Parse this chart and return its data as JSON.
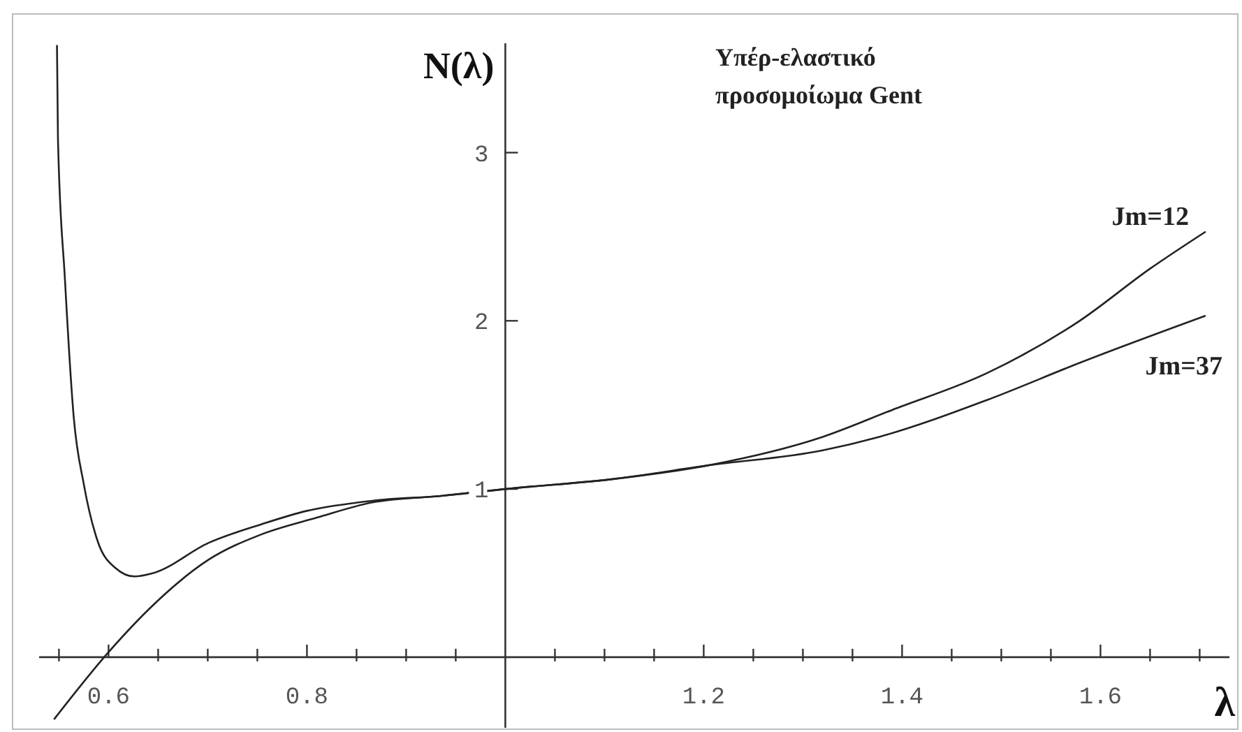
{
  "chart_data": {
    "type": "line",
    "title": "Υπέρ-ελαστικό\nπροσομοίωμα Gent",
    "xlabel": "λ",
    "ylabel": "N(λ)",
    "xlim": [
      0.53,
      1.73
    ],
    "ylim": [
      -0.42,
      3.65
    ],
    "xticks": [
      {
        "value": 0.55,
        "label": null
      },
      {
        "value": 0.6,
        "label": "0.6"
      },
      {
        "value": 0.65,
        "label": null
      },
      {
        "value": 0.7,
        "label": null
      },
      {
        "value": 0.75,
        "label": null
      },
      {
        "value": 0.8,
        "label": "0.8"
      },
      {
        "value": 0.85,
        "label": null
      },
      {
        "value": 0.9,
        "label": null
      },
      {
        "value": 0.95,
        "label": null
      },
      {
        "value": 1.05,
        "label": null
      },
      {
        "value": 1.1,
        "label": null
      },
      {
        "value": 1.15,
        "label": null
      },
      {
        "value": 1.2,
        "label": "1.2"
      },
      {
        "value": 1.25,
        "label": null
      },
      {
        "value": 1.3,
        "label": null
      },
      {
        "value": 1.35,
        "label": null
      },
      {
        "value": 1.4,
        "label": "1.4"
      },
      {
        "value": 1.45,
        "label": null
      },
      {
        "value": 1.5,
        "label": null
      },
      {
        "value": 1.55,
        "label": null
      },
      {
        "value": 1.6,
        "label": "1.6"
      },
      {
        "value": 1.65,
        "label": null
      },
      {
        "value": 1.7,
        "label": null
      }
    ],
    "yticks": [
      1,
      2,
      3
    ],
    "grid": false,
    "marker": "none",
    "line_style": "solid",
    "series": [
      {
        "name": "Jm=12",
        "color": "#222222",
        "x": [
          0.548,
          0.549,
          0.556,
          0.565,
          0.575,
          0.589,
          0.607,
          0.626,
          0.645,
          0.701,
          0.754,
          0.8,
          0.866,
          0.937,
          1.0,
          1.11,
          1.204,
          1.32,
          1.39,
          1.486,
          1.579,
          1.65,
          1.706
        ],
        "values": [
          3.64,
          3.08,
          2.25,
          1.42,
          1.03,
          0.69,
          0.53,
          0.48,
          0.5,
          0.68,
          0.79,
          0.87,
          0.93,
          0.96,
          1.0,
          1.06,
          1.14,
          1.31,
          1.47,
          1.69,
          2.0,
          2.31,
          2.53
        ]
      },
      {
        "name": "Jm=37",
        "color": "#222222",
        "x": [
          0.545,
          0.6,
          0.645,
          0.701,
          0.754,
          0.81,
          0.866,
          0.937,
          1.0,
          1.11,
          1.204,
          1.32,
          1.377,
          1.486,
          1.579,
          1.706
        ],
        "values": [
          -0.37,
          0.03,
          0.31,
          0.58,
          0.73,
          0.83,
          0.92,
          0.96,
          1.0,
          1.06,
          1.14,
          1.23,
          1.31,
          1.53,
          1.75,
          2.03
        ]
      }
    ]
  }
}
